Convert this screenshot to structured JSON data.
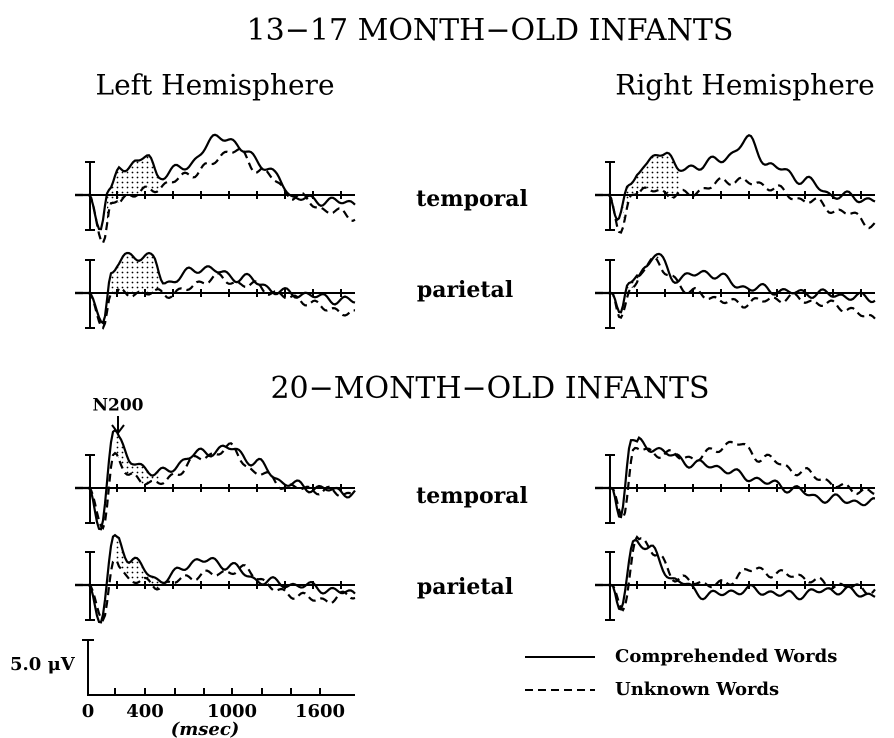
{
  "title_top": "13−17 MONTH−OLD INFANTS",
  "left_label": "Left Hemisphere",
  "right_label": "Right Hemisphere",
  "row_labels": [
    "temporal",
    "parietal",
    "temporal",
    "parietal"
  ],
  "title_bottom": "20−MONTH−OLD INFANTS",
  "annotation": "N200",
  "scale": {
    "amplitude": "5.0 μV",
    "ticks": [
      "0",
      "400",
      "1000",
      "1600"
    ],
    "unit": "(msec)"
  },
  "legend": [
    "Comprehended Words",
    "Unknown Words"
  ]
}
